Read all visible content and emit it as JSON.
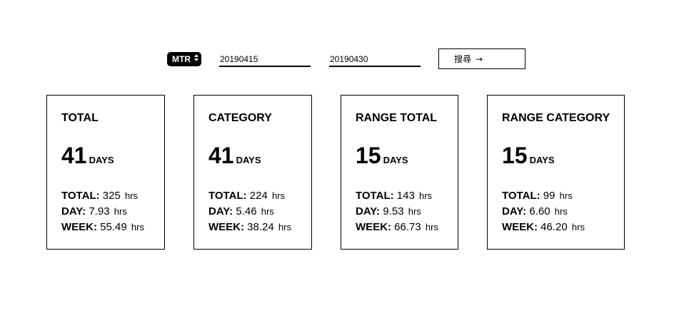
{
  "filter": {
    "type_select": "MTR",
    "start_date": "20190415",
    "end_date": "20190430",
    "search_label": "搜尋",
    "search_arrow": "→"
  },
  "cards": [
    {
      "title": "TOTAL",
      "days": "41",
      "days_unit": "DAYS",
      "total_label": "TOTAL:",
      "total_value": "325",
      "day_label": "DAY:",
      "day_value": "7.93",
      "week_label": "WEEK:",
      "week_value": "55.49",
      "unit": "hrs"
    },
    {
      "title": "CATEGORY",
      "days": "41",
      "days_unit": "DAYS",
      "total_label": "TOTAL:",
      "total_value": "224",
      "day_label": "DAY:",
      "day_value": "5.46",
      "week_label": "WEEK:",
      "week_value": "38.24",
      "unit": "hrs"
    },
    {
      "title": "RANGE TOTAL",
      "days": "15",
      "days_unit": "DAYS",
      "total_label": "TOTAL:",
      "total_value": "143",
      "day_label": "DAY:",
      "day_value": "9.53",
      "week_label": "WEEK:",
      "week_value": "66.73",
      "unit": "hrs"
    },
    {
      "title": "RANGE CATEGORY",
      "days": "15",
      "days_unit": "DAYS",
      "total_label": "TOTAL:",
      "total_value": "99",
      "day_label": "DAY:",
      "day_value": "6.60",
      "week_label": "WEEK:",
      "week_value": "46.20",
      "unit": "hrs"
    }
  ]
}
